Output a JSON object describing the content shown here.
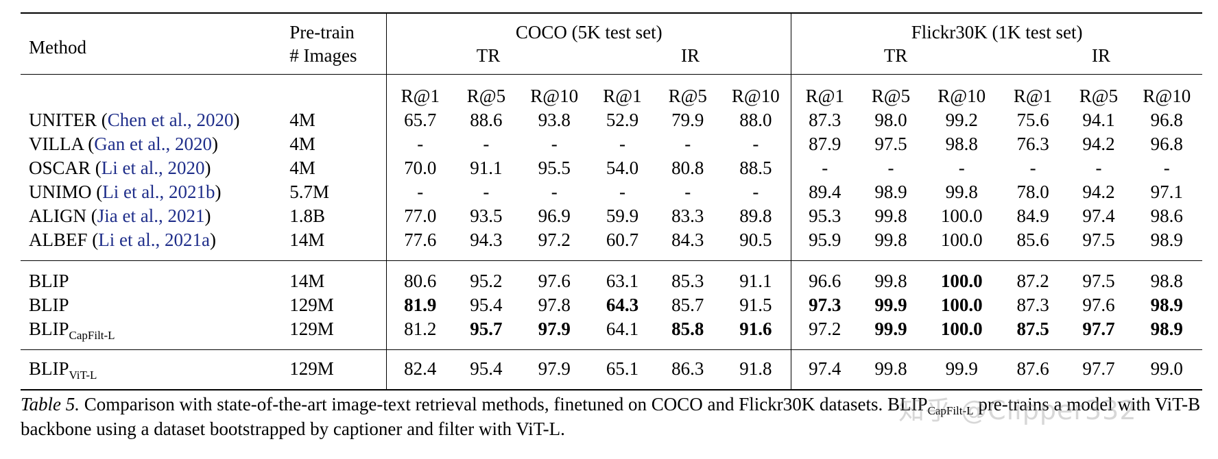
{
  "table": {
    "headers": {
      "method": "Method",
      "pretrain_line1": "Pre-train",
      "pretrain_line2": "# Images",
      "coco": "COCO (5K test set)",
      "flickr": "Flickr30K (1K test set)",
      "tr": "TR",
      "ir": "IR",
      "metrics": [
        "R@1",
        "R@5",
        "R@10",
        "R@1",
        "R@5",
        "R@10",
        "R@1",
        "R@5",
        "R@10",
        "R@1",
        "R@5",
        "R@10"
      ]
    },
    "rows": [
      {
        "method": "UNITER",
        "cite": "Chen et al., 2020",
        "images": "4M",
        "values": [
          "65.7",
          "88.6",
          "93.8",
          "52.9",
          "79.9",
          "88.0",
          "87.3",
          "98.0",
          "99.2",
          "75.6",
          "94.1",
          "96.8"
        ],
        "bold": []
      },
      {
        "method": "VILLA",
        "cite": "Gan et al., 2020",
        "images": "4M",
        "values": [
          "-",
          "-",
          "-",
          "-",
          "-",
          "-",
          "87.9",
          "97.5",
          "98.8",
          "76.3",
          "94.2",
          "96.8"
        ],
        "bold": []
      },
      {
        "method": "OSCAR",
        "cite": "Li et al., 2020",
        "images": "4M",
        "values": [
          "70.0",
          "91.1",
          "95.5",
          "54.0",
          "80.8",
          "88.5",
          "-",
          "-",
          "-",
          "-",
          "-",
          "-"
        ],
        "bold": []
      },
      {
        "method": "UNIMO",
        "cite": "Li et al., 2021b",
        "images": "5.7M",
        "values": [
          "-",
          "-",
          "-",
          "-",
          "-",
          "-",
          "89.4",
          "98.9",
          "99.8",
          "78.0",
          "94.2",
          "97.1"
        ],
        "bold": []
      },
      {
        "method": "ALIGN",
        "cite": "Jia et al., 2021",
        "images": "1.8B",
        "values": [
          "77.0",
          "93.5",
          "96.9",
          "59.9",
          "83.3",
          "89.8",
          "95.3",
          "99.8",
          "100.0",
          "84.9",
          "97.4",
          "98.6"
        ],
        "bold": []
      },
      {
        "method": "ALBEF",
        "cite": "Li et al., 2021a",
        "images": "14M",
        "values": [
          "77.6",
          "94.3",
          "97.2",
          "60.7",
          "84.3",
          "90.5",
          "95.9",
          "99.8",
          "100.0",
          "85.6",
          "97.5",
          "98.9"
        ],
        "bold": []
      },
      {
        "method": "BLIP",
        "sub": "",
        "images": "14M",
        "values": [
          "80.6",
          "95.2",
          "97.6",
          "63.1",
          "85.3",
          "91.1",
          "96.6",
          "99.8",
          "100.0",
          "87.2",
          "97.5",
          "98.8"
        ],
        "bold": [
          8
        ]
      },
      {
        "method": "BLIP",
        "sub": "",
        "images": "129M",
        "values": [
          "81.9",
          "95.4",
          "97.8",
          "64.3",
          "85.7",
          "91.5",
          "97.3",
          "99.9",
          "100.0",
          "87.3",
          "97.6",
          "98.9"
        ],
        "bold": [
          0,
          3,
          6,
          7,
          8,
          11
        ]
      },
      {
        "method": "BLIP",
        "sub": "CapFilt-L",
        "images": "129M",
        "values": [
          "81.2",
          "95.7",
          "97.9",
          "64.1",
          "85.8",
          "91.6",
          "97.2",
          "99.9",
          "100.0",
          "87.5",
          "97.7",
          "98.9"
        ],
        "bold": [
          1,
          2,
          4,
          5,
          7,
          8,
          9,
          10,
          11
        ]
      },
      {
        "method": "BLIP",
        "sub": "ViT-L",
        "images": "129M",
        "values": [
          "82.4",
          "95.4",
          "97.9",
          "65.1",
          "86.3",
          "91.8",
          "97.4",
          "99.8",
          "99.9",
          "87.6",
          "97.7",
          "99.0"
        ],
        "bold": []
      }
    ]
  },
  "caption": {
    "label": "Table 5.",
    "text": " Comparison with state-of-the-art image-text retrieval methods, finetuned on COCO and Flickr30K datasets. BLIP",
    "sub": "CapFilt-L",
    "text2": " pre-trains a model with ViT-B backbone using a dataset bootstrapped by captioner and filter with ViT-L."
  },
  "watermark": "知乎 @Clipper332"
}
